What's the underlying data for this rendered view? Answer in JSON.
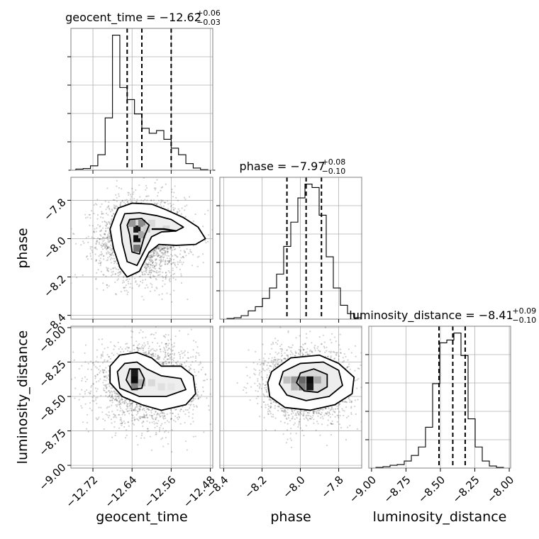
{
  "chart_data": {
    "type": "corner",
    "parameters": [
      "geocent_time",
      "phase",
      "luminosity_distance"
    ],
    "axis_labels": {
      "geocent_time": "geocent_time",
      "phase": "phase",
      "luminosity_distance": "luminosity_distance"
    },
    "ranges": {
      "geocent_time": [
        -12.765,
        -12.475
      ],
      "phase": [
        -8.42,
        -7.68
      ],
      "luminosity_distance": [
        -9.02,
        -7.99
      ]
    },
    "ticks": {
      "geocent_time": [
        -12.72,
        -12.64,
        -12.56,
        -12.48
      ],
      "phase": [
        -8.4,
        -8.2,
        -8.0,
        -7.8
      ],
      "luminosity_distance": [
        -9.0,
        -8.75,
        -8.5,
        -8.25,
        -8.0
      ]
    },
    "tick_labels": {
      "geocent_time": [
        "−12.72",
        "−12.64",
        "−12.56",
        "−12.48"
      ],
      "phase": [
        "−8.4",
        "−8.2",
        "−8.0",
        "−7.8"
      ],
      "luminosity_distance": [
        "−9.00",
        "−8.75",
        "−8.50",
        "−8.25",
        "−8.00"
      ],
      "phase_y": [
        "−7.8",
        "−8.0",
        "−8.2",
        "−8.4"
      ],
      "luminosity_distance_y": [
        "−8.00",
        "−8.25",
        "−8.50",
        "−8.75",
        "−9.00"
      ]
    },
    "y_ticks": {
      "phase": [
        -7.8,
        -8.0,
        -8.2,
        -8.4
      ],
      "luminosity_distance": [
        -8.0,
        -8.25,
        -8.5,
        -8.75,
        -9.0
      ]
    },
    "titles": {
      "geocent_time": {
        "name": "geocent_time",
        "median": "−12.62",
        "plus": "+0.06",
        "minus": "−0.03"
      },
      "phase": {
        "name": "phase",
        "median": "−7.97",
        "plus": "+0.08",
        "minus": "−0.10"
      },
      "luminosity_distance": {
        "name": "luminosity_distance",
        "median": "−8.41",
        "plus": "+0.09",
        "minus": "−0.10"
      }
    },
    "quantiles": {
      "geocent_time": [
        -12.65,
        -12.62,
        -12.56
      ],
      "phase": [
        -8.07,
        -7.97,
        -7.89
      ],
      "luminosity_distance": [
        -8.51,
        -8.41,
        -8.32
      ]
    },
    "histograms": {
      "geocent_time": {
        "edges": [
          -12.77,
          -12.755,
          -12.74,
          -12.725,
          -12.71,
          -12.695,
          -12.68,
          -12.665,
          -12.65,
          -12.635,
          -12.62,
          -12.605,
          -12.59,
          -12.575,
          -12.56,
          -12.545,
          -12.53,
          -12.515,
          -12.5,
          -12.485,
          -12.47
        ],
        "counts": [
          0,
          2,
          3,
          8,
          28,
          95,
          245,
          150,
          128,
          102,
          76,
          67,
          72,
          56,
          40,
          28,
          12,
          4,
          1,
          0
        ]
      },
      "phase": {
        "edges": [
          -8.42,
          -8.383,
          -8.346,
          -8.309,
          -8.272,
          -8.235,
          -8.198,
          -8.161,
          -8.124,
          -8.087,
          -8.05,
          -8.013,
          -7.976,
          -7.939,
          -7.902,
          -7.865,
          -7.828,
          -7.791,
          -7.754,
          -7.717,
          -7.68
        ],
        "counts": [
          0,
          1,
          2,
          5,
          12,
          18,
          30,
          45,
          65,
          105,
          140,
          175,
          195,
          190,
          150,
          90,
          45,
          20,
          8,
          2
        ]
      },
      "luminosity_distance": {
        "edges": [
          -9.02,
          -8.9685,
          -8.917,
          -8.8655,
          -8.814,
          -8.7625,
          -8.711,
          -8.6595,
          -8.608,
          -8.5565,
          -8.505,
          -8.4535,
          -8.402,
          -8.3505,
          -8.299,
          -8.2475,
          -8.196,
          -8.1445,
          -8.093,
          -8.0415,
          -7.99
        ],
        "counts": [
          0,
          1,
          2,
          4,
          5,
          10,
          18,
          30,
          58,
          120,
          178,
          182,
          192,
          160,
          70,
          30,
          10,
          3,
          1,
          0
        ]
      }
    },
    "pairs": [
      {
        "x": "geocent_time",
        "y": "phase",
        "samples": {
          "x_center": -12.62,
          "y_center": -8.0,
          "x_sigma": 0.045,
          "y_sigma": 0.11,
          "count": 2500
        },
        "density_cells": [
          {
            "x": -12.63,
            "y": -7.95,
            "shade": 0.9
          },
          {
            "x": -12.63,
            "y": -8.0,
            "shade": 0.95
          },
          {
            "x": -12.63,
            "y": -8.05,
            "shade": 0.55
          },
          {
            "x": -12.62,
            "y": -7.92,
            "shade": 0.45
          },
          {
            "x": -12.62,
            "y": -7.98,
            "shade": 0.35
          },
          {
            "x": -12.64,
            "y": -7.92,
            "shade": 0.4
          },
          {
            "x": -12.61,
            "y": -7.95,
            "shade": 0.2
          },
          {
            "x": -12.6,
            "y": -7.92,
            "shade": 0.15
          },
          {
            "x": -12.57,
            "y": -7.95,
            "shade": 0.15
          }
        ],
        "contours": [
          [
            [
              -12.668,
              -7.84
            ],
            [
              -12.64,
              -7.815
            ],
            [
              -12.6,
              -7.82
            ],
            [
              -12.57,
              -7.85
            ],
            [
              -12.535,
              -7.89
            ],
            [
              -12.505,
              -7.94
            ],
            [
              -12.49,
              -8.0
            ],
            [
              -12.51,
              -8.03
            ],
            [
              -12.55,
              -8.035
            ],
            [
              -12.585,
              -8.03
            ],
            [
              -12.605,
              -8.07
            ],
            [
              -12.625,
              -8.17
            ],
            [
              -12.65,
              -8.2
            ],
            [
              -12.665,
              -8.15
            ],
            [
              -12.678,
              -8.05
            ],
            [
              -12.685,
              -7.95
            ],
            [
              -12.675,
              -7.88
            ]
          ],
          [
            [
              -12.655,
              -7.87
            ],
            [
              -12.625,
              -7.865
            ],
            [
              -12.59,
              -7.88
            ],
            [
              -12.56,
              -7.9
            ],
            [
              -12.535,
              -7.94
            ],
            [
              -12.55,
              -7.96
            ],
            [
              -12.58,
              -7.965
            ],
            [
              -12.6,
              -7.99
            ],
            [
              -12.612,
              -8.05
            ],
            [
              -12.63,
              -8.14
            ],
            [
              -12.65,
              -8.12
            ],
            [
              -12.66,
              -8.02
            ],
            [
              -12.664,
              -7.93
            ]
          ],
          [
            [
              -12.645,
              -7.9
            ],
            [
              -12.62,
              -7.895
            ],
            [
              -12.605,
              -7.93
            ],
            [
              -12.615,
              -7.99
            ],
            [
              -12.625,
              -8.08
            ],
            [
              -12.64,
              -8.07
            ],
            [
              -12.645,
              -7.98
            ],
            [
              -12.65,
              -7.93
            ]
          ]
        ],
        "tail_line": [
          [
            -12.6,
            -7.95
          ],
          [
            -12.575,
            -7.95
          ],
          [
            -12.55,
            -7.96
          ]
        ]
      },
      {
        "x": "geocent_time",
        "y": "luminosity_distance",
        "samples": {
          "x_center": -12.61,
          "y_center": -8.41,
          "x_sigma": 0.05,
          "y_sigma": 0.14,
          "count": 2500
        },
        "density_cells": [
          {
            "x": -12.635,
            "y": -8.33,
            "shade": 0.9
          },
          {
            "x": -12.635,
            "y": -8.38,
            "shade": 0.95
          },
          {
            "x": -12.635,
            "y": -8.43,
            "shade": 0.5
          },
          {
            "x": -12.62,
            "y": -8.4,
            "shade": 0.3
          },
          {
            "x": -12.6,
            "y": -8.4,
            "shade": 0.15
          },
          {
            "x": -12.58,
            "y": -8.43,
            "shade": 0.12
          },
          {
            "x": -12.56,
            "y": -8.43,
            "shade": 0.1
          }
        ],
        "contours": [
          [
            [
              -12.665,
              -8.2
            ],
            [
              -12.63,
              -8.18
            ],
            [
              -12.6,
              -8.22
            ],
            [
              -12.58,
              -8.28
            ],
            [
              -12.54,
              -8.28
            ],
            [
              -12.515,
              -8.35
            ],
            [
              -12.51,
              -8.48
            ],
            [
              -12.53,
              -8.56
            ],
            [
              -12.58,
              -8.6
            ],
            [
              -12.62,
              -8.56
            ],
            [
              -12.66,
              -8.5
            ],
            [
              -12.685,
              -8.4
            ],
            [
              -12.685,
              -8.28
            ]
          ],
          [
            [
              -12.655,
              -8.26
            ],
            [
              -12.63,
              -8.25
            ],
            [
              -12.61,
              -8.3
            ],
            [
              -12.58,
              -8.35
            ],
            [
              -12.54,
              -8.37
            ],
            [
              -12.53,
              -8.45
            ],
            [
              -12.57,
              -8.5
            ],
            [
              -12.625,
              -8.5
            ],
            [
              -12.665,
              -8.44
            ],
            [
              -12.67,
              -8.32
            ]
          ],
          [
            [
              -12.645,
              -8.3
            ],
            [
              -12.625,
              -8.3
            ],
            [
              -12.615,
              -8.37
            ],
            [
              -12.62,
              -8.44
            ],
            [
              -12.64,
              -8.45
            ],
            [
              -12.652,
              -8.38
            ]
          ]
        ]
      },
      {
        "x": "phase",
        "y": "luminosity_distance",
        "samples": {
          "x_center": -7.97,
          "y_center": -8.41,
          "x_sigma": 0.11,
          "y_sigma": 0.13,
          "count": 2500
        },
        "density_cells": [
          {
            "x": -7.95,
            "y": -8.38,
            "shade": 0.95
          },
          {
            "x": -7.95,
            "y": -8.43,
            "shade": 0.9
          },
          {
            "x": -7.99,
            "y": -8.38,
            "shade": 0.6
          },
          {
            "x": -8.03,
            "y": -8.38,
            "shade": 0.4
          },
          {
            "x": -8.07,
            "y": -8.38,
            "shade": 0.25
          },
          {
            "x": -7.99,
            "y": -8.43,
            "shade": 0.5
          },
          {
            "x": -8.03,
            "y": -8.43,
            "shade": 0.3
          },
          {
            "x": -7.91,
            "y": -8.38,
            "shade": 0.35
          }
        ],
        "contours": [
          [
            [
              -8.15,
              -8.32
            ],
            [
              -8.05,
              -8.22
            ],
            [
              -7.9,
              -8.2
            ],
            [
              -7.8,
              -8.26
            ],
            [
              -7.72,
              -8.36
            ],
            [
              -7.73,
              -8.48
            ],
            [
              -7.82,
              -8.56
            ],
            [
              -7.95,
              -8.6
            ],
            [
              -8.08,
              -8.58
            ],
            [
              -8.16,
              -8.5
            ],
            [
              -8.17,
              -8.4
            ]
          ],
          [
            [
              -8.09,
              -8.32
            ],
            [
              -8.0,
              -8.26
            ],
            [
              -7.88,
              -8.25
            ],
            [
              -7.8,
              -8.31
            ],
            [
              -7.78,
              -8.42
            ],
            [
              -7.85,
              -8.5
            ],
            [
              -7.97,
              -8.53
            ],
            [
              -8.07,
              -8.49
            ],
            [
              -8.11,
              -8.41
            ]
          ],
          [
            [
              -8.0,
              -8.33
            ],
            [
              -7.93,
              -8.3
            ],
            [
              -7.86,
              -8.34
            ],
            [
              -7.86,
              -8.43
            ],
            [
              -7.91,
              -8.47
            ],
            [
              -7.98,
              -8.46
            ],
            [
              -8.02,
              -8.4
            ]
          ]
        ]
      }
    ]
  }
}
